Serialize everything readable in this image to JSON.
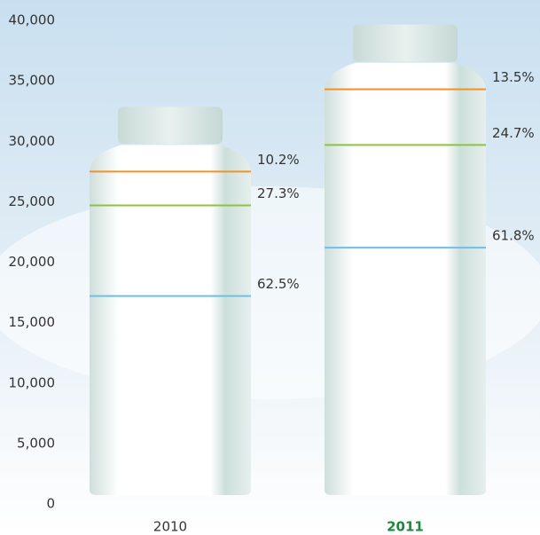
{
  "chart_data": {
    "type": "bottle",
    "categories": [
      "2010",
      "2011"
    ],
    "highlight_index": 1,
    "highlight_color": "#1a8a3c",
    "series": [
      {
        "color": "#6cc0e8",
        "values": [
          17200,
          21200
        ],
        "percent_labels": [
          "62.5%",
          "61.8%"
        ]
      },
      {
        "color": "#8cc43c",
        "values": [
          7500,
          8500
        ],
        "percent_labels": [
          "27.3%",
          "24.7%"
        ]
      },
      {
        "color": "#f0922c",
        "values": [
          2800,
          4600
        ],
        "percent_labels": [
          "10.2%",
          "13.5%"
        ]
      }
    ],
    "ylim": [
      0,
      40000
    ],
    "yticks": [
      0,
      {
        "value": 5000,
        "label": "5,000"
      },
      {
        "value": 10000,
        "label": "10,000"
      },
      {
        "value": 15000,
        "label": "15,000"
      },
      {
        "value": 20000,
        "label": "20,000"
      },
      {
        "value": 25000,
        "label": "25,000"
      },
      {
        "value": 30000,
        "label": "30,000"
      },
      {
        "value": 35000,
        "label": "35,000"
      },
      {
        "value": 40000,
        "label": "40,000"
      }
    ]
  }
}
